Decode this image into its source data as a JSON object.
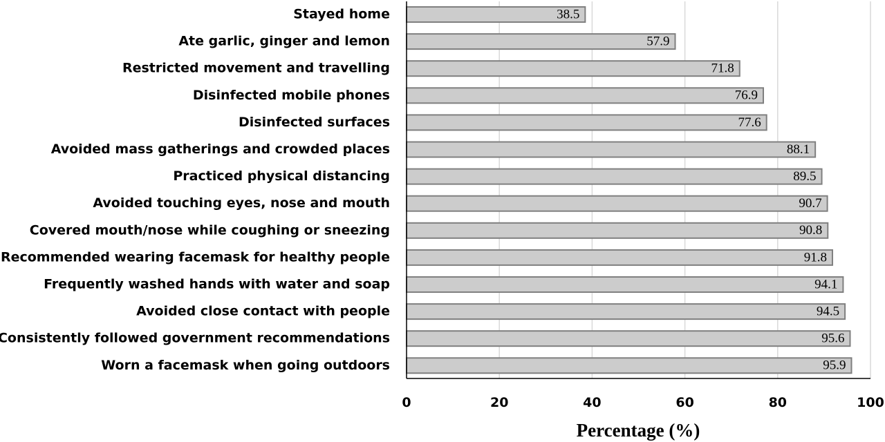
{
  "chart_data": {
    "type": "bar",
    "orientation": "horizontal",
    "categories": [
      "Stayed home",
      "Ate garlic, ginger and lemon",
      "Restricted movement and travelling",
      "Disinfected mobile phones",
      "Disinfected surfaces",
      "Avoided mass gatherings and crowded places",
      "Practiced physical distancing",
      "Avoided touching eyes, nose and mouth",
      "Covered mouth/nose while coughing or sneezing",
      "Recommended wearing facemask for healthy people",
      "Frequently washed hands with water and soap",
      "Avoided close contact with people",
      "Consistently followed government recommendations",
      "Worn a facemask when going outdoors"
    ],
    "values": [
      38.5,
      57.9,
      71.8,
      76.9,
      77.6,
      88.1,
      89.5,
      90.7,
      90.8,
      91.8,
      94.1,
      94.5,
      95.6,
      95.9
    ],
    "value_labels": [
      "38.5",
      "57.9",
      "71.8",
      "76.9",
      "77.6",
      "88.1",
      "89.5",
      "90.7",
      "90.8",
      "91.8",
      "94.1",
      "94.5",
      "95.6",
      "95.9"
    ],
    "xlabel": "Percentage (%)",
    "ylabel": "",
    "title": "",
    "xlim": [
      0,
      100
    ],
    "xticks": [
      0,
      20,
      40,
      60,
      80,
      100
    ],
    "grid": true,
    "legend": "none",
    "colors": {
      "bar_fill": "#cccccc",
      "bar_edge": "#7f7f7f",
      "grid": "#d9d9d9",
      "axis": "#000000"
    }
  }
}
